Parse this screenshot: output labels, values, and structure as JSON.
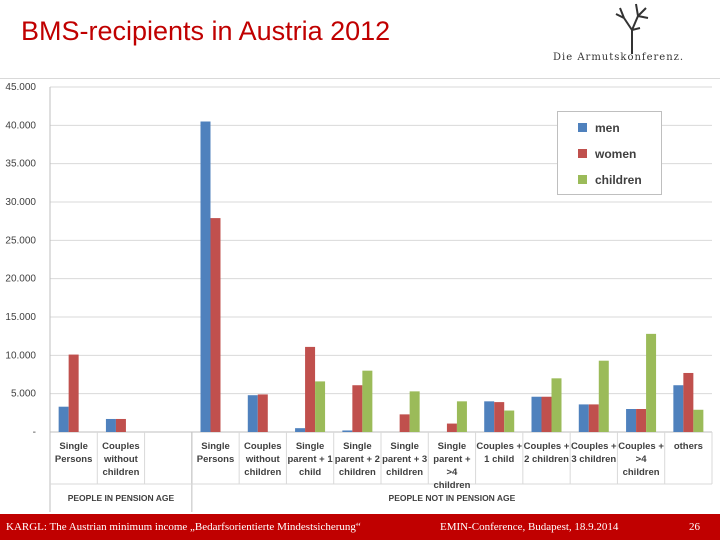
{
  "slide": {
    "title": "BMS-recipients in Austria 2012",
    "logo_text": "Die Armutskonferenz."
  },
  "footer": {
    "left": "KARGL: The Austrian minimum income „Bedarfsorientierte Mindestsicherung“",
    "middle": "EMIN-Conference, Budapest, 18.9.2014",
    "page": "26"
  },
  "chart_data": {
    "type": "bar",
    "title": "BMS-recipients in Austria 2012",
    "xlabel": "",
    "ylabel": "",
    "ylim": [
      0,
      45000
    ],
    "y_ticks": [
      {
        "value": 0,
        "label": "-"
      },
      {
        "value": 5000,
        "label": "5.000"
      },
      {
        "value": 10000,
        "label": "10.000"
      },
      {
        "value": 15000,
        "label": "15.000"
      },
      {
        "value": 20000,
        "label": "20.000"
      },
      {
        "value": 25000,
        "label": "25.000"
      },
      {
        "value": 30000,
        "label": "30.000"
      },
      {
        "value": 35000,
        "label": "35.000"
      },
      {
        "value": 40000,
        "label": "40.000"
      },
      {
        "value": 45000,
        "label": "45.000"
      }
    ],
    "categories": [
      "Single Persons",
      "Couples without children",
      "",
      "Single Persons",
      "Couples without children",
      "Single parent + 1 child",
      "Single parent + 2 children",
      "Single parent + 3 children",
      "Single parent + >4 children",
      "Couples + 1 child",
      "Couples + 2 children",
      "Couples + 3 children",
      "Couples + >4 children",
      "others"
    ],
    "category_labels": [
      [
        "Single",
        "Persons"
      ],
      [
        "Couples",
        "without",
        "children"
      ],
      [],
      [
        "Single",
        "Persons"
      ],
      [
        "Couples",
        "without",
        "children"
      ],
      [
        "Single",
        "parent + 1",
        "child"
      ],
      [
        "Single",
        "parent + 2",
        "children"
      ],
      [
        "Single",
        "parent + 3",
        "children"
      ],
      [
        "Single",
        "parent +",
        ">4",
        "children"
      ],
      [
        "Couples +",
        "1 child"
      ],
      [
        "Couples +",
        "2 children"
      ],
      [
        "Couples +",
        "3 children"
      ],
      [
        "Couples +",
        ">4",
        "children"
      ],
      [
        "others"
      ]
    ],
    "groups": [
      {
        "label": "PEOPLE IN PENSION AGE",
        "from": 0,
        "to": 2
      },
      {
        "label": "PEOPLE NOT IN PENSION AGE",
        "from": 3,
        "to": 13
      }
    ],
    "series": [
      {
        "name": "men",
        "color": "#4f81bd",
        "values": [
          3300,
          1700,
          0,
          40500,
          4800,
          500,
          200,
          0,
          0,
          4000,
          4600,
          3600,
          3000,
          6100
        ]
      },
      {
        "name": "women",
        "color": "#c0504d",
        "values": [
          10100,
          1700,
          0,
          27900,
          4900,
          11100,
          6100,
          2300,
          1100,
          3900,
          4600,
          3600,
          3000,
          7700
        ]
      },
      {
        "name": "children",
        "color": "#9bbb59",
        "values": [
          0,
          0,
          0,
          0,
          0,
          6600,
          8000,
          5300,
          4000,
          2800,
          7000,
          9300,
          12800,
          2900
        ]
      }
    ],
    "legend_position": "top-right",
    "grid": true
  }
}
